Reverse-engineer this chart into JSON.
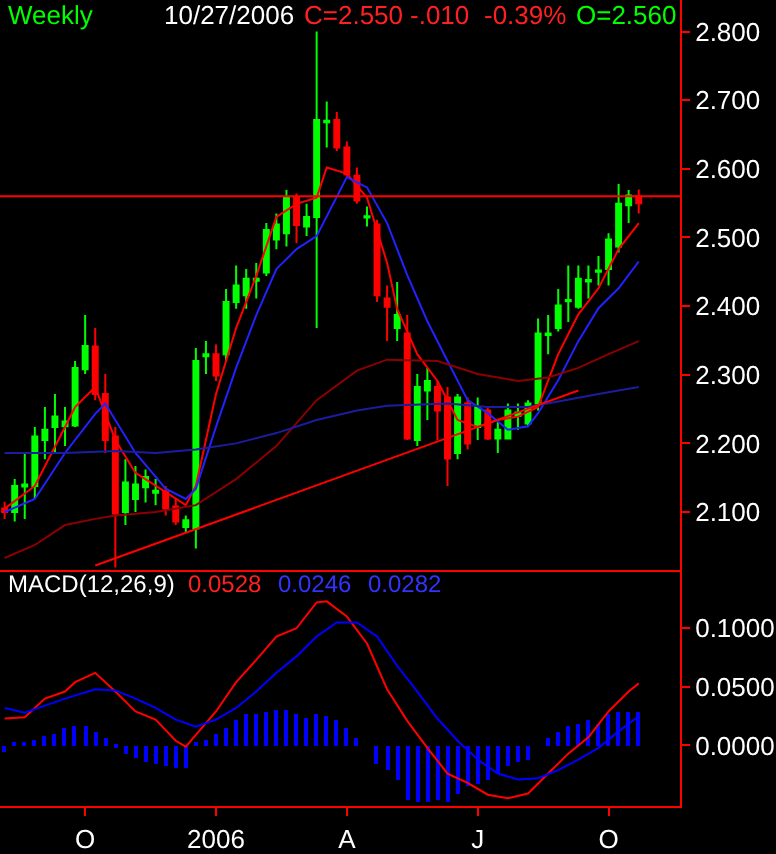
{
  "chart_data": [
    {
      "type": "candlestick",
      "title": "Weekly",
      "annotations": [
        "10/27/2006",
        "C=2.550",
        "-.010",
        "-0.39%",
        "O=2.560"
      ],
      "categories": [
        null,
        null,
        null,
        null,
        null,
        null,
        null,
        null,
        null,
        null,
        null,
        null,
        null,
        null,
        null,
        null,
        null,
        null,
        null,
        null,
        null,
        null,
        null,
        null,
        null,
        null,
        null,
        null,
        null,
        null,
        null,
        null,
        null,
        null,
        null,
        null,
        null,
        null,
        null,
        null,
        null,
        null,
        null,
        null,
        null,
        null,
        null,
        null,
        null,
        null,
        null,
        null,
        null,
        null,
        null,
        null,
        null,
        null,
        null,
        null,
        null,
        null,
        null,
        null
      ],
      "ohlc": [
        [
          2.105,
          2.115,
          2.09,
          2.1
        ],
        [
          2.1,
          2.148,
          2.086,
          2.138
        ],
        [
          2.137,
          2.186,
          2.09,
          2.14
        ],
        [
          2.138,
          2.224,
          2.119,
          2.21
        ],
        [
          2.205,
          2.253,
          2.177,
          2.22
        ],
        [
          2.224,
          2.272,
          2.186,
          2.239
        ],
        [
          2.225,
          2.253,
          2.196,
          2.232
        ],
        [
          2.226,
          2.32,
          2.224,
          2.31
        ],
        [
          2.308,
          2.387,
          2.301,
          2.342
        ],
        [
          2.341,
          2.368,
          2.263,
          2.272
        ],
        [
          2.272,
          2.301,
          2.186,
          2.205
        ],
        [
          2.21,
          2.224,
          2.019,
          2.098
        ],
        [
          2.1,
          2.177,
          2.081,
          2.143
        ],
        [
          2.119,
          2.167,
          2.1,
          2.14
        ],
        [
          2.136,
          2.162,
          2.114,
          2.151
        ],
        [
          2.128,
          2.148,
          2.11,
          2.131
        ],
        [
          2.129,
          2.138,
          2.095,
          2.105
        ],
        [
          2.108,
          2.119,
          2.081,
          2.086
        ],
        [
          2.078,
          2.095,
          2.071,
          2.088
        ],
        [
          2.076,
          2.339,
          2.047,
          2.32
        ],
        [
          2.327,
          2.349,
          2.301,
          2.33
        ],
        [
          2.33,
          2.344,
          2.291,
          2.299
        ],
        [
          2.33,
          2.425,
          2.32,
          2.406
        ],
        [
          2.406,
          2.459,
          2.396,
          2.43
        ],
        [
          2.416,
          2.454,
          2.396,
          2.44
        ],
        [
          2.437,
          2.463,
          2.411,
          2.44
        ],
        [
          2.449,
          2.521,
          2.444,
          2.511
        ],
        [
          2.497,
          2.535,
          2.483,
          2.519
        ],
        [
          2.506,
          2.569,
          2.487,
          2.559
        ],
        [
          2.559,
          2.564,
          2.492,
          2.518
        ],
        [
          2.516,
          2.549,
          2.502,
          2.53
        ],
        [
          2.53,
          2.8,
          2.368,
          2.671
        ],
        [
          2.668,
          2.698,
          2.631,
          2.67
        ],
        [
          2.671,
          2.683,
          2.626,
          2.631
        ],
        [
          2.631,
          2.64,
          2.588,
          2.592
        ],
        [
          2.59,
          2.602,
          2.549,
          2.554
        ],
        [
          2.529,
          2.545,
          2.516,
          2.531
        ],
        [
          2.519,
          2.526,
          2.406,
          2.416
        ],
        [
          2.411,
          2.43,
          2.349,
          2.399
        ],
        [
          2.368,
          2.435,
          2.349,
          2.387
        ],
        [
          2.36,
          2.387,
          2.205,
          2.207
        ],
        [
          2.205,
          2.301,
          2.196,
          2.282
        ],
        [
          2.277,
          2.31,
          2.234,
          2.291
        ],
        [
          2.282,
          2.291,
          2.205,
          2.248
        ],
        [
          2.267,
          2.282,
          2.138,
          2.178
        ],
        [
          2.186,
          2.272,
          2.177,
          2.267
        ],
        [
          2.258,
          2.267,
          2.191,
          2.2
        ],
        [
          2.224,
          2.267,
          2.205,
          2.253
        ],
        [
          2.248,
          2.253,
          2.205,
          2.207
        ],
        [
          2.207,
          2.234,
          2.186,
          2.22
        ],
        [
          2.207,
          2.258,
          2.207,
          2.248
        ],
        [
          2.24,
          2.258,
          2.22,
          2.245
        ],
        [
          2.229,
          2.263,
          2.224,
          2.258
        ],
        [
          2.258,
          2.382,
          2.248,
          2.36
        ],
        [
          2.358,
          2.387,
          2.33,
          2.36
        ],
        [
          2.368,
          2.425,
          2.363,
          2.401
        ],
        [
          2.407,
          2.459,
          2.377,
          2.409
        ],
        [
          2.399,
          2.459,
          2.396,
          2.44
        ],
        [
          2.436,
          2.459,
          2.411,
          2.438
        ],
        [
          2.45,
          2.473,
          2.43,
          2.452
        ],
        [
          2.454,
          2.506,
          2.43,
          2.497
        ],
        [
          2.487,
          2.578,
          2.478,
          2.549
        ],
        [
          2.547,
          2.569,
          2.521,
          2.561
        ],
        [
          2.56,
          2.57,
          2.535,
          2.55
        ]
      ],
      "series": [
        {
          "type": "line",
          "color": "#ff0000",
          "values": [
            2.105,
            null,
            null,
            2.138,
            null,
            null,
            2.224,
            2.253,
            null,
            2.282,
            null,
            2.205,
            null,
            2.157,
            null,
            null,
            2.129,
            null,
            2.11,
            2.138,
            null,
            2.272,
            null,
            2.368,
            null,
            2.444,
            null,
            2.53,
            null,
            2.549,
            null,
            2.558,
            2.602,
            null,
            2.593,
            null,
            2.558,
            null,
            2.463,
            2.396,
            null,
            2.33,
            null,
            2.291,
            null,
            2.234,
            null,
            2.224,
            null,
            2.234,
            null,
            2.239,
            null,
            2.253,
            null,
            2.33,
            null,
            2.388,
            null,
            2.426,
            null,
            2.483,
            null,
            2.521
          ]
        },
        {
          "type": "line",
          "color": "#2222ff",
          "values": [
            2.1,
            null,
            null,
            2.119,
            null,
            null,
            2.186,
            null,
            null,
            2.243,
            2.258,
            null,
            null,
            2.186,
            null,
            null,
            2.134,
            null,
            2.119,
            2.134,
            null,
            2.224,
            null,
            2.31,
            null,
            2.387,
            null,
            2.454,
            null,
            2.483,
            null,
            2.502,
            null,
            null,
            2.588,
            null,
            2.573,
            null,
            2.521,
            null,
            2.445,
            null,
            2.378,
            null,
            2.32,
            null,
            2.263,
            null,
            2.244,
            null,
            2.22,
            null,
            2.225,
            2.244,
            null,
            2.292,
            null,
            2.349,
            null,
            2.397,
            null,
            2.426,
            null,
            2.465
          ]
        },
        {
          "type": "line",
          "color": "#8b0000",
          "values": [
            2.033,
            null,
            null,
            2.052,
            null,
            null,
            2.081,
            null,
            null,
            2.09,
            null,
            2.095,
            null,
            null,
            null,
            2.1,
            null,
            null,
            null,
            2.11,
            null,
            null,
            null,
            2.148,
            null,
            null,
            null,
            2.196,
            null,
            null,
            null,
            2.263,
            null,
            null,
            null,
            2.306,
            null,
            null,
            2.322,
            null,
            null,
            null,
            null,
            2.32,
            null,
            null,
            null,
            2.301,
            null,
            null,
            null,
            2.291,
            null,
            null,
            2.296,
            null,
            null,
            2.31,
            null,
            null,
            2.33,
            null,
            null,
            2.349
          ]
        },
        {
          "type": "line",
          "color": "#1c1ca0",
          "values": [
            2.186,
            null,
            null,
            null,
            null,
            null,
            2.186,
            null,
            null,
            null,
            null,
            2.189,
            null,
            null,
            null,
            2.186,
            null,
            null,
            null,
            2.191,
            null,
            null,
            null,
            2.2,
            null,
            null,
            null,
            2.215,
            null,
            null,
            null,
            2.234,
            null,
            null,
            null,
            2.248,
            null,
            null,
            2.255,
            null,
            null,
            null,
            null,
            null,
            2.258,
            null,
            null,
            null,
            2.253,
            null,
            null,
            null,
            2.253,
            null,
            null,
            2.261,
            null,
            null,
            null,
            2.272,
            null,
            null,
            null,
            2.282
          ]
        },
        {
          "type": "line",
          "color": "#ff0000",
          "values": [
            null,
            null,
            null,
            null,
            null,
            null,
            null,
            null,
            null,
            2.022,
            null,
            null,
            null,
            null,
            null,
            null,
            null,
            null,
            null,
            null,
            null,
            null,
            null,
            null,
            null,
            null,
            null,
            null,
            null,
            null,
            null,
            null,
            null,
            null,
            null,
            null,
            null,
            null,
            null,
            null,
            null,
            null,
            null,
            null,
            null,
            null,
            null,
            null,
            null,
            null,
            null,
            null,
            null,
            null,
            null,
            null,
            null,
            2.277,
            null,
            null,
            null,
            null,
            null,
            null
          ]
        }
      ],
      "ref_lines": [
        {
          "axis": "y",
          "value": 2.56,
          "color": "#ff0000"
        }
      ],
      "ylim": [
        2.015,
        2.846
      ],
      "yticks": [
        {
          "value": 2.1,
          "label": "2.100"
        },
        {
          "value": 2.2,
          "label": "2.200"
        },
        {
          "value": 2.3,
          "label": "2.300"
        },
        {
          "value": 2.4,
          "label": "2.400"
        },
        {
          "value": 2.5,
          "label": "2.500"
        },
        {
          "value": 2.6,
          "label": "2.600"
        },
        {
          "value": 2.7,
          "label": "2.700"
        },
        {
          "value": 2.8,
          "label": "2.800"
        }
      ],
      "tick_labels": "y"
    },
    {
      "type": "bar",
      "title": "MACD(12,26,9)",
      "annotations": [
        "0.0528",
        "0.0246",
        "0.0282"
      ],
      "categories": [
        null,
        null,
        null,
        null,
        null,
        null,
        null,
        null,
        "O",
        null,
        null,
        null,
        null,
        null,
        null,
        null,
        null,
        null,
        null,
        null,
        null,
        "2006",
        null,
        null,
        null,
        null,
        null,
        null,
        null,
        null,
        null,
        null,
        null,
        null,
        "A",
        null,
        null,
        null,
        null,
        null,
        null,
        null,
        null,
        null,
        null,
        null,
        null,
        "J",
        null,
        null,
        null,
        null,
        null,
        null,
        null,
        null,
        null,
        null,
        null,
        null,
        "O",
        null,
        null,
        null
      ],
      "series": [
        {
          "type": "bar",
          "color": "#0000ff",
          "values": [
            -0.006,
            0.002,
            0.003,
            0.005,
            0.008,
            0.01,
            0.015,
            0.017,
            0.017,
            0.012,
            0.006,
            -0.003,
            -0.008,
            -0.011,
            -0.014,
            -0.015,
            -0.017,
            -0.019,
            -0.02,
            0.002,
            0.004,
            0.009,
            0.015,
            0.022,
            0.026,
            0.027,
            0.029,
            0.03,
            0.03,
            0.026,
            0.023,
            0.026,
            0.025,
            0.021,
            0.015,
            0.006,
            0.0,
            -0.016,
            -0.021,
            -0.029,
            -0.046,
            -0.048,
            -0.048,
            -0.046,
            -0.049,
            -0.041,
            -0.035,
            -0.033,
            -0.029,
            -0.024,
            -0.018,
            -0.014,
            -0.012,
            0.0,
            0.007,
            0.012,
            0.016,
            0.019,
            0.022,
            0.019,
            0.026,
            0.029,
            0.029,
            0.028
          ]
        },
        {
          "type": "line",
          "color": "#ff0000",
          "values": [
            0.023,
            null,
            0.024,
            null,
            0.04,
            null,
            0.046,
            0.054,
            null,
            0.062,
            null,
            0.046,
            null,
            0.029,
            null,
            0.022,
            null,
            0.004,
            -0.001,
            0.009,
            null,
            0.029,
            null,
            0.054,
            null,
            0.073,
            null,
            0.093,
            null,
            0.1,
            null,
            0.122,
            0.123,
            null,
            0.11,
            null,
            0.087,
            null,
            0.048,
            null,
            0.021,
            null,
            -0.002,
            null,
            -0.024,
            null,
            -0.032,
            null,
            -0.042,
            null,
            -0.045,
            null,
            -0.041,
            null,
            -0.024,
            null,
            -0.007,
            null,
            0.007,
            null,
            0.029,
            null,
            0.046,
            0.053
          ]
        },
        {
          "type": "line",
          "color": "#0000ff",
          "values": [
            0.032,
            null,
            0.028,
            null,
            0.034,
            null,
            0.04,
            null,
            null,
            0.048,
            null,
            0.047,
            null,
            0.04,
            null,
            0.032,
            null,
            0.022,
            null,
            0.016,
            null,
            0.022,
            null,
            0.032,
            null,
            0.046,
            null,
            0.062,
            null,
            0.076,
            null,
            0.093,
            null,
            0.105,
            null,
            0.105,
            null,
            0.093,
            null,
            0.068,
            null,
            0.046,
            null,
            0.023,
            null,
            0.004,
            null,
            -0.012,
            null,
            -0.024,
            null,
            -0.029,
            null,
            -0.028,
            null,
            -0.021,
            null,
            -0.012,
            null,
            -0.002,
            null,
            0.012,
            null,
            0.025
          ]
        }
      ],
      "ylim": [
        -0.052,
        0.148
      ],
      "yticks": [
        {
          "value": 0,
          "label": "0.0000"
        },
        {
          "value": 0.05,
          "label": "0.0500"
        },
        {
          "value": 0.1,
          "label": "0.1000"
        }
      ]
    }
  ]
}
